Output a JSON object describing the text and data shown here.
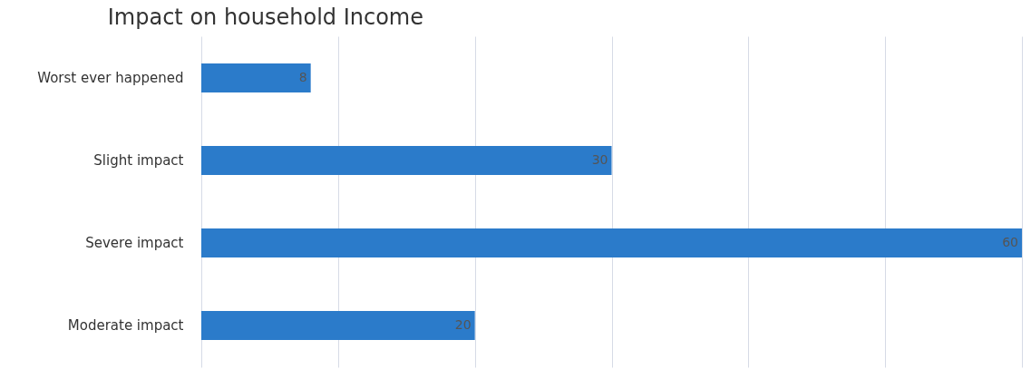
{
  "chart_data": {
    "type": "bar",
    "orientation": "horizontal",
    "title": "Impact on household Income",
    "categories": [
      "Worst ever happened",
      "Slight impact",
      "Severe impact",
      "Moderate impact"
    ],
    "values": [
      8,
      30,
      60,
      20
    ],
    "color": "#2b7bca",
    "data_labels": true,
    "xlim": [
      0,
      60
    ],
    "xticks": [
      {
        "value": 0,
        "label": null
      },
      {
        "value": 10,
        "label": null
      },
      {
        "value": 20,
        "label": null
      },
      {
        "value": 30,
        "label": null
      },
      {
        "value": 40,
        "label": null
      },
      {
        "value": 50,
        "label": null
      },
      {
        "value": 60,
        "label": null
      }
    ],
    "tick_labels": "y",
    "grid": "x"
  }
}
